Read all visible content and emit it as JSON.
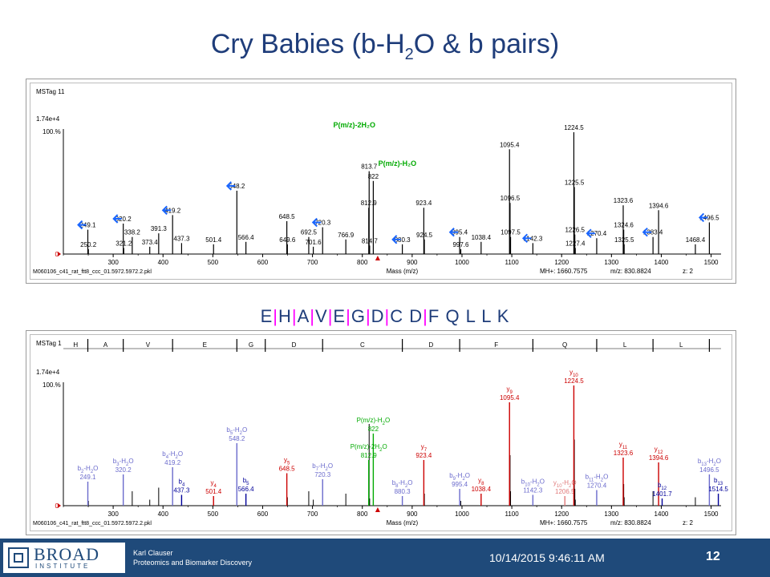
{
  "title": {
    "pre": "Cry Babies (b-H",
    "sub": "2",
    "post": "O & b pairs)"
  },
  "sequence": {
    "parts": [
      "E",
      "|",
      "H",
      "|",
      "A",
      "|",
      "V",
      "|",
      "E",
      "|",
      "G",
      "|",
      "D",
      "|",
      "C",
      " D",
      "|",
      "F",
      " Q",
      " L",
      " L",
      " K"
    ]
  },
  "footer": {
    "logo_main": "BROAD",
    "logo_sub": "INSTITUTE",
    "presenter_name": "Karl Clauser",
    "presenter_dept": "Proteomics and Biomarker Discovery",
    "date": "10/14/2015 9:46:11 AM",
    "page": "12"
  },
  "colors": {
    "title": "#1f3d7a",
    "arrow": "#1a66ff",
    "y_ion": "#cc0000",
    "b_ion": "#000099",
    "b_water": "#6a6acc",
    "precursor": "#00aa00",
    "separator": "#ff00ff"
  },
  "chart_data": [
    {
      "type": "bar",
      "panel": "top",
      "header": "MSTag 11",
      "ymax_label": "1.74e+4",
      "percent_label": "100.%",
      "zero_label": "0",
      "xlabel": "Mass (m/z)",
      "xlim": [
        200,
        1520
      ],
      "xticks": [
        300,
        400,
        500,
        600,
        700,
        800,
        900,
        1000,
        1100,
        1200,
        1300,
        1400,
        1500
      ],
      "ylim": [
        0,
        100
      ],
      "file": "M060106_c41_rat_ftt8_ccc_01.5972.5972.2.pkl",
      "mh": "MH+: 1660.7575",
      "mz": "m/z: 830.8824",
      "z": "z: 2",
      "precursor_labels": [
        {
          "text": "P(m/z)-2H₂O",
          "x": 812.9
        },
        {
          "text": "P(m/z)-H₂O",
          "x": 822
        }
      ],
      "peaks": [
        {
          "x": 249.1,
          "y": 20,
          "label": "249.1"
        },
        {
          "x": 250.2,
          "y": 4,
          "label": "250.2"
        },
        {
          "x": 320.2,
          "y": 25,
          "label": "320.2"
        },
        {
          "x": 321.2,
          "y": 5,
          "label": "321.2"
        },
        {
          "x": 338.2,
          "y": 14,
          "label": "338.2"
        },
        {
          "x": 373.4,
          "y": 6,
          "label": "373.4"
        },
        {
          "x": 391.3,
          "y": 17,
          "label": "391.3"
        },
        {
          "x": 419.2,
          "y": 32,
          "label": "419.2"
        },
        {
          "x": 437.3,
          "y": 9,
          "label": "437.3"
        },
        {
          "x": 501.4,
          "y": 8,
          "label": "501.4"
        },
        {
          "x": 548.2,
          "y": 52,
          "label": "548.2"
        },
        {
          "x": 566.4,
          "y": 10,
          "label": "566.4"
        },
        {
          "x": 648.5,
          "y": 27,
          "label": "648.5"
        },
        {
          "x": 649.6,
          "y": 8,
          "label": "649.6"
        },
        {
          "x": 692.5,
          "y": 14,
          "label": "692.5"
        },
        {
          "x": 701.6,
          "y": 6,
          "label": "701.6"
        },
        {
          "x": 720.3,
          "y": 22,
          "label": "720.3"
        },
        {
          "x": 766.9,
          "y": 12,
          "label": "766.9"
        },
        {
          "x": 812.9,
          "y": 38,
          "label": "812.9"
        },
        {
          "x": 813.7,
          "y": 68,
          "label": "813.7"
        },
        {
          "x": 814.7,
          "y": 7,
          "label": "814.7"
        },
        {
          "x": 822,
          "y": 60,
          "label": "822"
        },
        {
          "x": 880.3,
          "y": 8,
          "label": "880.3"
        },
        {
          "x": 923.4,
          "y": 38,
          "label": "923.4"
        },
        {
          "x": 924.5,
          "y": 12,
          "label": "924.5"
        },
        {
          "x": 995.4,
          "y": 14,
          "label": "995.4"
        },
        {
          "x": 997.6,
          "y": 4,
          "label": "997.6"
        },
        {
          "x": 1038.4,
          "y": 10,
          "label": "1038.4"
        },
        {
          "x": 1095.4,
          "y": 86,
          "label": "1095.4"
        },
        {
          "x": 1096.5,
          "y": 42,
          "label": "1096.5"
        },
        {
          "x": 1097.5,
          "y": 14,
          "label": "1097.5"
        },
        {
          "x": 1142.3,
          "y": 9,
          "label": "1142.3"
        },
        {
          "x": 1224.5,
          "y": 100,
          "label": "1224.5"
        },
        {
          "x": 1225.5,
          "y": 55,
          "label": "1225.5"
        },
        {
          "x": 1226.5,
          "y": 16,
          "label": "1226.5"
        },
        {
          "x": 1227.4,
          "y": 5,
          "label": "1227.4"
        },
        {
          "x": 1270.4,
          "y": 13,
          "label": "1270.4"
        },
        {
          "x": 1323.6,
          "y": 40,
          "label": "1323.6"
        },
        {
          "x": 1324.6,
          "y": 20,
          "label": "1324.6"
        },
        {
          "x": 1325.5,
          "y": 8,
          "label": "1325.5"
        },
        {
          "x": 1383.4,
          "y": 14,
          "label": "1383.4"
        },
        {
          "x": 1394.6,
          "y": 36,
          "label": "1394.6"
        },
        {
          "x": 1468.4,
          "y": 8,
          "label": "1468.4"
        },
        {
          "x": 1496.5,
          "y": 26,
          "label": "1496.5"
        }
      ],
      "arrows_at": [
        249.1,
        320.2,
        419.2,
        548.2,
        720.3,
        880.3,
        995.4,
        1142.3,
        1270.4,
        1383.4,
        1496.5
      ]
    },
    {
      "type": "bar",
      "panel": "bottom",
      "header": "MSTag 1",
      "ymax_label": "1.74e+4",
      "percent_label": "100.%",
      "zero_label": "0",
      "xlabel": "Mass (m/z)",
      "xlim": [
        200,
        1520
      ],
      "xticks": [
        300,
        400,
        500,
        600,
        700,
        800,
        900,
        1000,
        1100,
        1200,
        1300,
        1400,
        1500
      ],
      "ylim": [
        0,
        100
      ],
      "file": "M060106_c41_rat_ftt8_ccc_01.5972.5972.2.pkl",
      "mh": "MH+: 1660.7575",
      "mz": "m/z: 830.8824",
      "z": "z: 2",
      "residues": [
        "H",
        "A",
        "V",
        "E",
        "G",
        "D",
        "C",
        "D",
        "F",
        "Q",
        "L",
        "L"
      ],
      "residue_marks": [
        249.1,
        320.2,
        419.2,
        548.2,
        605.2,
        720.3,
        880.3,
        995.4,
        1142.3,
        1270.4,
        1383.4,
        1496.5
      ],
      "peaks": [
        {
          "x": 249.1,
          "y": 20,
          "kind": "bw",
          "ion": "b",
          "n": "2",
          "tag": "-H",
          "sub2": "2",
          "tail": "O",
          "mz": "249.1"
        },
        {
          "x": 320.2,
          "y": 26,
          "kind": "bw",
          "ion": "b",
          "n": "3",
          "tag": "-H",
          "sub2": "2",
          "tail": "O",
          "mz": "320.2"
        },
        {
          "x": 419.2,
          "y": 32,
          "kind": "bw",
          "ion": "b",
          "n": "4",
          "tag": "-H",
          "sub2": "2",
          "tail": "O",
          "mz": "419.2"
        },
        {
          "x": 437.3,
          "y": 9,
          "kind": "b",
          "ion": "b",
          "n": "4",
          "tag": "",
          "sub2": "",
          "tail": "",
          "mz": "437.3"
        },
        {
          "x": 501.4,
          "y": 8,
          "kind": "y",
          "ion": "y",
          "n": "4",
          "tag": "",
          "sub2": "",
          "tail": "",
          "mz": "501.4"
        },
        {
          "x": 548.2,
          "y": 52,
          "kind": "bw",
          "ion": "b",
          "n": "5",
          "tag": "-H",
          "sub2": "2",
          "tail": "O",
          "mz": "548.2"
        },
        {
          "x": 566.4,
          "y": 10,
          "kind": "b",
          "ion": "b",
          "n": "5",
          "tag": "",
          "sub2": "",
          "tail": "",
          "mz": "566.4"
        },
        {
          "x": 648.5,
          "y": 27,
          "kind": "y",
          "ion": "y",
          "n": "5",
          "tag": "",
          "sub2": "",
          "tail": "",
          "mz": "648.5"
        },
        {
          "x": 720.3,
          "y": 22,
          "kind": "bw",
          "ion": "b",
          "n": "7",
          "tag": "-H",
          "sub2": "2",
          "tail": "O",
          "mz": "720.3"
        },
        {
          "x": 812.9,
          "y": 38,
          "kind": "p",
          "ion": "P(m/z)-2H",
          "n": "",
          "tag": "",
          "sub2": "2",
          "tail": "O",
          "mz": "812.9"
        },
        {
          "x": 822,
          "y": 60,
          "kind": "p",
          "ion": "P(m/z)-H",
          "n": "",
          "tag": "",
          "sub2": "2",
          "tail": "O",
          "mz": "822"
        },
        {
          "x": 880.3,
          "y": 8,
          "kind": "bw",
          "ion": "b",
          "n": "8",
          "tag": "-H",
          "sub2": "2",
          "tail": "O",
          "mz": "880.3"
        },
        {
          "x": 923.4,
          "y": 38,
          "kind": "y",
          "ion": "y",
          "n": "7",
          "tag": "",
          "sub2": "",
          "tail": "",
          "mz": "923.4"
        },
        {
          "x": 995.4,
          "y": 14,
          "kind": "bw",
          "ion": "b",
          "n": "9",
          "tag": "-H",
          "sub2": "2",
          "tail": "O",
          "mz": "995.4"
        },
        {
          "x": 1038.4,
          "y": 10,
          "kind": "y",
          "ion": "y",
          "n": "8",
          "tag": "",
          "sub2": "",
          "tail": "",
          "mz": "1038.4"
        },
        {
          "x": 1095.4,
          "y": 86,
          "kind": "y",
          "ion": "y",
          "n": "9",
          "tag": "",
          "sub2": "",
          "tail": "",
          "mz": "1095.4"
        },
        {
          "x": 1142.3,
          "y": 9,
          "kind": "bw",
          "ion": "b",
          "n": "10",
          "tag": "-H",
          "sub2": "2",
          "tail": "O",
          "mz": "1142.3"
        },
        {
          "x": 1206.5,
          "y": 8,
          "kind": "yw",
          "ion": "y",
          "n": "10",
          "tag": "-H",
          "sub2": "2",
          "tail": "O",
          "mz": "1206.5"
        },
        {
          "x": 1224.5,
          "y": 100,
          "kind": "y",
          "ion": "y",
          "n": "10",
          "tag": "",
          "sub2": "",
          "tail": "",
          "mz": "1224.5"
        },
        {
          "x": 1270.4,
          "y": 13,
          "kind": "bw",
          "ion": "b",
          "n": "11",
          "tag": "-H",
          "sub2": "2",
          "tail": "O",
          "mz": "1270.4"
        },
        {
          "x": 1323.6,
          "y": 40,
          "kind": "y",
          "ion": "y",
          "n": "11",
          "tag": "",
          "sub2": "",
          "tail": "",
          "mz": "1323.6"
        },
        {
          "x": 1394.6,
          "y": 36,
          "kind": "y",
          "ion": "y",
          "n": "12",
          "tag": "",
          "sub2": "",
          "tail": "",
          "mz": "1394.6"
        },
        {
          "x": 1401.7,
          "y": 6,
          "kind": "b",
          "ion": "b",
          "n": "12",
          "tag": "",
          "sub2": "",
          "tail": "",
          "mz": "1401.7"
        },
        {
          "x": 1496.5,
          "y": 26,
          "kind": "bw",
          "ion": "b",
          "n": "13",
          "tag": "-H",
          "sub2": "2",
          "tail": "O",
          "mz": "1496.5"
        },
        {
          "x": 1514.5,
          "y": 10,
          "kind": "b",
          "ion": "b",
          "n": "13",
          "tag": "",
          "sub2": "",
          "tail": "",
          "mz": "1514.5"
        }
      ],
      "minor_peaks": [
        {
          "x": 250.2,
          "y": 4
        },
        {
          "x": 338.2,
          "y": 12
        },
        {
          "x": 373.4,
          "y": 5
        },
        {
          "x": 391.3,
          "y": 15
        },
        {
          "x": 649.6,
          "y": 7
        },
        {
          "x": 692.5,
          "y": 12
        },
        {
          "x": 701.6,
          "y": 5
        },
        {
          "x": 766.9,
          "y": 10
        },
        {
          "x": 813.7,
          "y": 68
        },
        {
          "x": 814.7,
          "y": 6
        },
        {
          "x": 924.5,
          "y": 10
        },
        {
          "x": 997.6,
          "y": 4
        },
        {
          "x": 1096.5,
          "y": 42
        },
        {
          "x": 1097.5,
          "y": 12
        },
        {
          "x": 1225.5,
          "y": 55
        },
        {
          "x": 1226.5,
          "y": 14
        },
        {
          "x": 1227.4,
          "y": 5
        },
        {
          "x": 1324.6,
          "y": 18
        },
        {
          "x": 1325.5,
          "y": 7
        },
        {
          "x": 1383.4,
          "y": 12
        },
        {
          "x": 1468.4,
          "y": 7
        }
      ]
    }
  ]
}
